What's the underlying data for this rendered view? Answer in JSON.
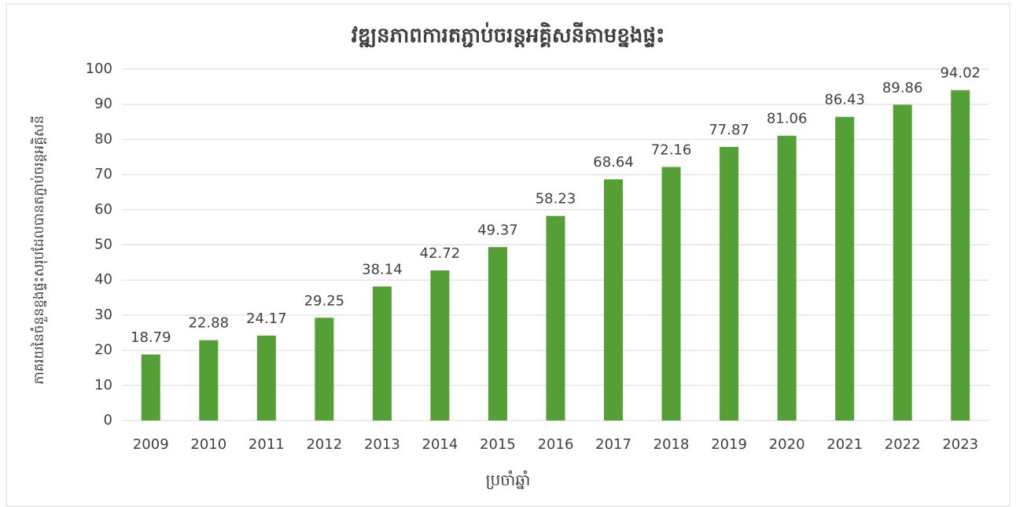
{
  "chart_data": {
    "type": "bar",
    "title": "វឌ្ឍនភាពការតភ្ជាប់ចរន្តអគ្គិសនីតាមខ្នងផ្ទះ",
    "x_label": "ប្រចាំឆ្នាំ",
    "y_label": "ភាគរយនៃចំនួនខ្នងផ្ទះសរុបដែលបានតភ្ជាប់ចរន្តអគ្គិសនី",
    "categories": [
      "2009",
      "2010",
      "2011",
      "2012",
      "2013",
      "2014",
      "2015",
      "2016",
      "2017",
      "2018",
      "2019",
      "2020",
      "2021",
      "2022",
      "2023"
    ],
    "values": [
      18.79,
      22.88,
      24.17,
      29.25,
      38.14,
      42.72,
      49.37,
      58.23,
      68.64,
      72.16,
      77.87,
      81.06,
      86.43,
      89.86,
      94.02
    ],
    "color": "#55a036",
    "ylim": [
      0,
      100
    ],
    "yticks": [
      0,
      10,
      20,
      30,
      40,
      50,
      60,
      70,
      80,
      90,
      100
    ],
    "grid": true
  }
}
